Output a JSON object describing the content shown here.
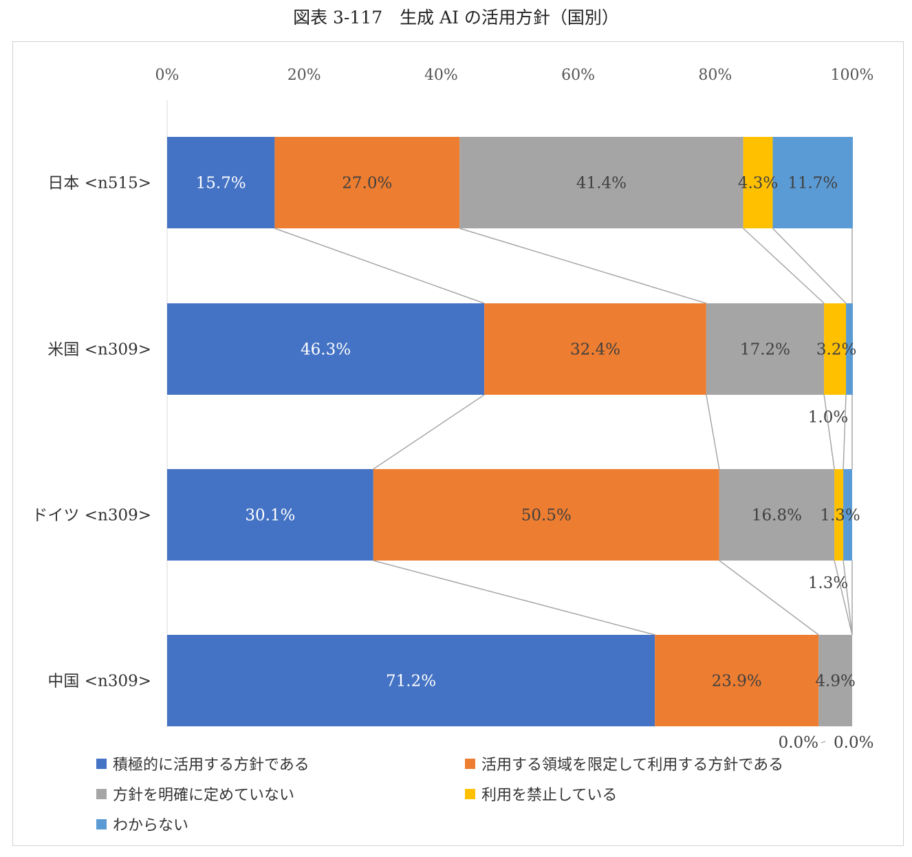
{
  "title": "図表 3-117　生成 AI の活用方針（国別）",
  "chart_data": {
    "type": "bar",
    "orientation": "horizontal",
    "stacked": "percent",
    "categories": [
      "日本 <n515>",
      "米国 <n309>",
      "ドイツ <n309>",
      "中国 <n309>"
    ],
    "series": [
      {
        "name": "積極的に活用する方針である",
        "color": "#4472C4",
        "values": [
          15.7,
          46.3,
          30.1,
          71.2
        ],
        "labels": [
          "15.7%",
          "46.3%",
          "30.1%",
          "71.2%"
        ]
      },
      {
        "name": "活用する領域を限定して利用する方針である",
        "color": "#ED7D31",
        "values": [
          27.0,
          32.4,
          50.5,
          23.9
        ],
        "labels": [
          "27.0%",
          "32.4%",
          "50.5%",
          "23.9%"
        ]
      },
      {
        "name": "方針を明確に定めていない",
        "color": "#A5A5A5",
        "values": [
          41.4,
          17.2,
          16.8,
          4.9
        ],
        "labels": [
          "41.4%",
          "17.2%",
          "16.8%",
          "4.9%"
        ]
      },
      {
        "name": "利用を禁止している",
        "color": "#FFC000",
        "values": [
          4.3,
          3.2,
          1.3,
          0.0
        ],
        "labels": [
          "4.3%",
          "3.2%",
          "1.3%",
          "0.0%"
        ]
      },
      {
        "name": "わからない",
        "color": "#5B9BD5",
        "values": [
          11.7,
          1.0,
          1.3,
          0.0
        ],
        "labels": [
          "11.7%",
          "1.0%",
          "1.3%",
          "0.0%"
        ]
      }
    ],
    "x_ticks": [
      "0%",
      "20%",
      "40%",
      "60%",
      "80%",
      "100%"
    ],
    "xlim": [
      0,
      100
    ],
    "xaxis_position": "top",
    "series_lines": true,
    "grid": false,
    "legend_position": "bottom"
  }
}
